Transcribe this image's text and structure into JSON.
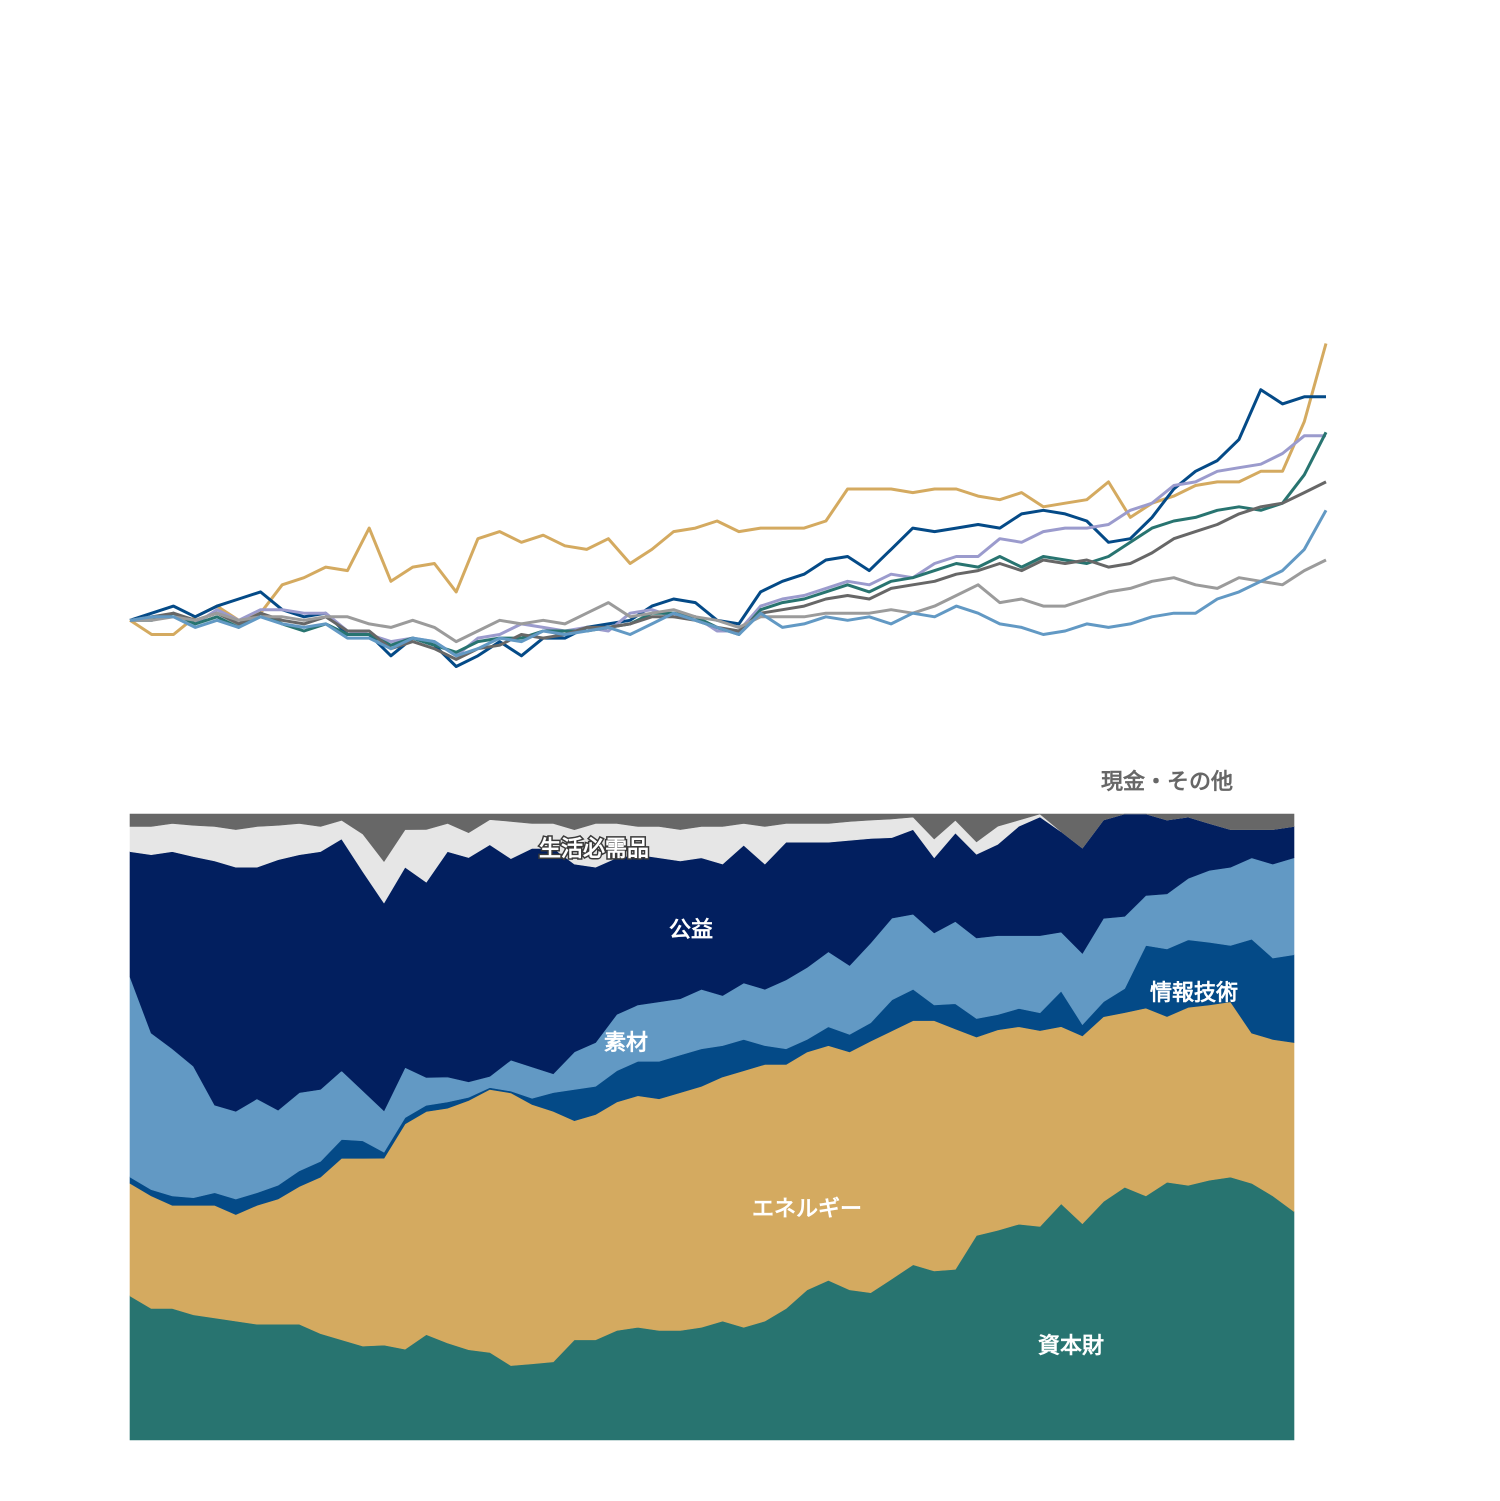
{
  "chart_data": [
    {
      "type": "line",
      "title": "",
      "xlabel": "",
      "ylabel": "",
      "grid": false,
      "legend": "none",
      "ylim": [
        0.55,
        2.1
      ],
      "x": [
        1,
        2,
        3,
        4,
        5,
        6,
        7,
        8,
        9,
        10,
        11,
        12,
        13,
        14,
        15,
        16,
        17,
        18,
        19,
        20,
        21,
        22,
        23,
        24,
        25,
        26,
        27,
        28,
        29,
        30,
        31,
        32,
        33,
        34,
        35,
        36,
        37,
        38,
        39,
        40,
        41,
        42,
        43,
        44,
        45,
        46,
        47,
        48,
        49,
        50,
        51,
        52,
        53,
        54,
        55,
        56
      ],
      "series": [
        {
          "color": "#d4aa60",
          "values": [
            1.0,
            0.96,
            0.96,
            1.01,
            1.04,
            1.0,
            1.02,
            1.1,
            1.12,
            1.15,
            1.14,
            1.26,
            1.11,
            1.15,
            1.16,
            1.08,
            1.23,
            1.25,
            1.22,
            1.24,
            1.21,
            1.2,
            1.23,
            1.16,
            1.2,
            1.25,
            1.26,
            1.28,
            1.25,
            1.26,
            1.26,
            1.26,
            1.28,
            1.37,
            1.37,
            1.37,
            1.36,
            1.37,
            1.37,
            1.35,
            1.34,
            1.36,
            1.32,
            1.33,
            1.34,
            1.39,
            1.29,
            1.33,
            1.35,
            1.38,
            1.39,
            1.39,
            1.42,
            1.42,
            1.56,
            1.78
          ]
        },
        {
          "color": "#044a87",
          "values": [
            1.0,
            1.02,
            1.04,
            1.01,
            1.04,
            1.06,
            1.08,
            1.03,
            1.01,
            1.02,
            0.96,
            0.96,
            0.9,
            0.95,
            0.93,
            0.87,
            0.9,
            0.94,
            0.9,
            0.95,
            0.95,
            0.98,
            0.99,
            1.0,
            1.04,
            1.06,
            1.05,
            1.0,
            0.99,
            1.08,
            1.11,
            1.13,
            1.17,
            1.18,
            1.14,
            1.2,
            1.26,
            1.25,
            1.26,
            1.27,
            1.26,
            1.3,
            1.31,
            1.3,
            1.28,
            1.22,
            1.23,
            1.29,
            1.37,
            1.42,
            1.45,
            1.51,
            1.65,
            1.61,
            1.63,
            1.63
          ]
        },
        {
          "color": "#9b9bcd",
          "values": [
            1.0,
            1.0,
            1.02,
            0.99,
            1.03,
            1.0,
            1.03,
            1.03,
            1.02,
            1.02,
            0.97,
            0.96,
            0.94,
            0.95,
            0.94,
            0.9,
            0.95,
            0.96,
            0.99,
            0.98,
            0.97,
            0.98,
            0.97,
            1.02,
            1.03,
            1.01,
            1.01,
            0.97,
            0.97,
            1.04,
            1.06,
            1.07,
            1.09,
            1.11,
            1.1,
            1.13,
            1.12,
            1.16,
            1.18,
            1.18,
            1.23,
            1.22,
            1.25,
            1.26,
            1.26,
            1.27,
            1.31,
            1.33,
            1.38,
            1.39,
            1.42,
            1.43,
            1.44,
            1.47,
            1.52,
            1.52
          ]
        },
        {
          "color": "#287470",
          "values": [
            1.0,
            1.0,
            1.02,
            0.99,
            1.01,
            0.98,
            1.02,
            0.99,
            0.97,
            0.99,
            0.96,
            0.96,
            0.93,
            0.95,
            0.93,
            0.91,
            0.94,
            0.95,
            0.95,
            0.97,
            0.97,
            0.97,
            0.98,
            0.99,
            1.02,
            1.02,
            1.01,
            0.98,
            0.96,
            1.03,
            1.05,
            1.06,
            1.08,
            1.1,
            1.08,
            1.11,
            1.12,
            1.14,
            1.16,
            1.15,
            1.18,
            1.15,
            1.18,
            1.17,
            1.16,
            1.18,
            1.22,
            1.26,
            1.28,
            1.29,
            1.31,
            1.32,
            1.31,
            1.33,
            1.41,
            1.53
          ]
        },
        {
          "color": "#676767",
          "values": [
            1.0,
            1.01,
            1.02,
            1.0,
            1.02,
            0.99,
            1.02,
            1.0,
            0.99,
            1.01,
            0.97,
            0.97,
            0.92,
            0.94,
            0.92,
            0.89,
            0.92,
            0.93,
            0.96,
            0.95,
            0.96,
            0.98,
            0.98,
            0.99,
            1.01,
            1.01,
            1.0,
            0.98,
            0.97,
            1.02,
            1.03,
            1.04,
            1.06,
            1.07,
            1.06,
            1.09,
            1.1,
            1.11,
            1.13,
            1.14,
            1.16,
            1.14,
            1.17,
            1.16,
            1.17,
            1.15,
            1.16,
            1.19,
            1.23,
            1.25,
            1.27,
            1.3,
            1.32,
            1.33,
            1.36,
            1.39
          ]
        },
        {
          "color": "#9b9b9b",
          "values": [
            1.0,
            1.0,
            1.01,
            1.0,
            1.02,
            1.0,
            1.01,
            1.01,
            1.0,
            1.01,
            1.01,
            0.99,
            0.98,
            1.0,
            0.98,
            0.94,
            0.97,
            1.0,
            0.99,
            1.0,
            0.99,
            1.02,
            1.05,
            1.01,
            1.02,
            1.03,
            1.01,
            1.0,
            0.98,
            1.01,
            1.01,
            1.01,
            1.02,
            1.02,
            1.02,
            1.03,
            1.02,
            1.04,
            1.07,
            1.1,
            1.05,
            1.06,
            1.04,
            1.04,
            1.06,
            1.08,
            1.09,
            1.11,
            1.12,
            1.1,
            1.09,
            1.12,
            1.11,
            1.1,
            1.14,
            1.17
          ]
        },
        {
          "color": "#6299c4",
          "values": [
            1.0,
            1.01,
            1.01,
            0.98,
            1.0,
            0.98,
            1.01,
            0.99,
            0.98,
            0.99,
            0.95,
            0.95,
            0.92,
            0.95,
            0.94,
            0.9,
            0.92,
            0.95,
            0.94,
            0.97,
            0.96,
            0.97,
            0.98,
            0.96,
            0.99,
            1.02,
            1.0,
            0.98,
            0.96,
            1.02,
            0.98,
            0.99,
            1.01,
            1.0,
            1.01,
            0.99,
            1.02,
            1.01,
            1.04,
            1.02,
            0.99,
            0.98,
            0.96,
            0.97,
            0.99,
            0.98,
            0.99,
            1.01,
            1.02,
            1.02,
            1.06,
            1.08,
            1.11,
            1.14,
            1.2,
            1.31
          ]
        }
      ]
    },
    {
      "type": "area",
      "title": "",
      "xlabel": "",
      "ylabel": "",
      "grid": false,
      "stacked": true,
      "normalized": true,
      "ylim": [
        0,
        1
      ],
      "x": [
        1,
        2,
        3,
        4,
        5,
        6,
        7,
        8,
        9,
        10,
        11,
        12,
        13,
        14,
        15,
        16,
        17,
        18,
        19,
        20,
        21,
        22,
        23,
        24,
        25,
        26,
        27,
        28,
        29,
        30,
        31,
        32,
        33,
        34,
        35,
        36,
        37,
        38,
        39,
        40,
        41,
        42,
        43,
        44,
        45,
        46,
        47,
        48,
        49,
        50,
        51,
        52,
        53,
        54,
        55,
        56
      ],
      "series": [
        {
          "name": "資本財",
          "color": "#287470",
          "values": [
            0.23,
            0.21,
            0.21,
            0.2,
            0.195,
            0.19,
            0.185,
            0.185,
            0.185,
            0.17,
            0.16,
            0.15,
            0.16,
            0.145,
            0.17,
            0.155,
            0.145,
            0.14,
            0.12,
            0.122,
            0.125,
            0.16,
            0.16,
            0.175,
            0.18,
            0.175,
            0.175,
            0.18,
            0.19,
            0.18,
            0.19,
            0.21,
            0.24,
            0.255,
            0.24,
            0.24,
            0.26,
            0.28,
            0.27,
            0.27,
            0.33,
            0.345,
            0.355,
            0.36,
            0.4,
            0.38,
            0.4,
            0.42,
            0.39,
            0.42,
            0.415,
            0.415,
            0.42,
            0.41,
            0.39,
            0.365
          ]
        },
        {
          "name": "エネルギー",
          "color": "#d4aa60",
          "values": [
            0.18,
            0.18,
            0.165,
            0.175,
            0.18,
            0.17,
            0.19,
            0.2,
            0.22,
            0.25,
            0.29,
            0.3,
            0.315,
            0.36,
            0.36,
            0.375,
            0.4,
            0.42,
            0.44,
            0.415,
            0.4,
            0.35,
            0.36,
            0.365,
            0.37,
            0.37,
            0.38,
            0.385,
            0.39,
            0.41,
            0.41,
            0.39,
            0.38,
            0.375,
            0.38,
            0.41,
            0.4,
            0.39,
            0.4,
            0.38,
            0.32,
            0.33,
            0.325,
            0.33,
            0.3,
            0.33,
            0.31,
            0.29,
            0.3,
            0.27,
            0.29,
            0.28,
            0.28,
            0.24,
            0.25,
            0.27
          ]
        },
        {
          "name": "情報技術",
          "color": "#044a87",
          "values": [
            0.01,
            0.01,
            0.015,
            0.012,
            0.02,
            0.025,
            0.02,
            0.022,
            0.025,
            0.025,
            0.03,
            0.028,
            0.01,
            0.01,
            0.01,
            0.01,
            0.005,
            0.003,
            0.003,
            0.01,
            0.03,
            0.05,
            0.045,
            0.05,
            0.055,
            0.06,
            0.06,
            0.06,
            0.05,
            0.05,
            0.03,
            0.025,
            0.02,
            0.03,
            0.028,
            0.03,
            0.05,
            0.05,
            0.025,
            0.04,
            0.03,
            0.025,
            0.03,
            0.03,
            0.06,
            0.02,
            0.025,
            0.04,
            0.1,
            0.11,
            0.11,
            0.1,
            0.09,
            0.15,
            0.13,
            0.14
          ]
        },
        {
          "name": "素材",
          "color": "#6299c4",
          "values": [
            0.32,
            0.25,
            0.235,
            0.21,
            0.14,
            0.14,
            0.15,
            0.12,
            0.125,
            0.115,
            0.11,
            0.08,
            0.07,
            0.08,
            0.045,
            0.04,
            0.025,
            0.018,
            0.05,
            0.05,
            0.03,
            0.06,
            0.07,
            0.09,
            0.09,
            0.095,
            0.09,
            0.095,
            0.08,
            0.09,
            0.09,
            0.11,
            0.115,
            0.12,
            0.11,
            0.13,
            0.132,
            0.12,
            0.115,
            0.13,
            0.13,
            0.13,
            0.12,
            0.13,
            0.1,
            0.125,
            0.14,
            0.12,
            0.08,
            0.09,
            0.1,
            0.115,
            0.125,
            0.13,
            0.15,
            0.155
          ]
        },
        {
          "name": "公益",
          "color": "#021f5f",
          "values": [
            0.2,
            0.285,
            0.315,
            0.335,
            0.39,
            0.39,
            0.37,
            0.4,
            0.38,
            0.38,
            0.37,
            0.35,
            0.35,
            0.32,
            0.315,
            0.36,
            0.36,
            0.37,
            0.325,
            0.35,
            0.36,
            0.3,
            0.28,
            0.25,
            0.24,
            0.23,
            0.22,
            0.21,
            0.21,
            0.22,
            0.2,
            0.22,
            0.2,
            0.175,
            0.2,
            0.17,
            0.13,
            0.135,
            0.12,
            0.14,
            0.135,
            0.15,
            0.18,
            0.2,
            0.17,
            0.185,
            0.165,
            0.17,
            0.13,
            0.12,
            0.1,
            0.075,
            0.06,
            0.045,
            0.055,
            0.05
          ]
        },
        {
          "name": "生活必需品",
          "color": "#e6e6e6",
          "values": [
            0.04,
            0.045,
            0.045,
            0.05,
            0.055,
            0.06,
            0.065,
            0.055,
            0.05,
            0.04,
            0.03,
            0.06,
            0.07,
            0.06,
            0.085,
            0.045,
            0.04,
            0.04,
            0.06,
            0.04,
            0.04,
            0.055,
            0.07,
            0.055,
            0.045,
            0.05,
            0.05,
            0.05,
            0.06,
            0.035,
            0.06,
            0.03,
            0.03,
            0.03,
            0.03,
            0.03,
            0.03,
            0.02,
            0.03,
            0.02,
            0.02,
            0.03,
            0.01,
            0.005,
            0.0,
            0.0,
            0.0,
            0.0,
            0.0,
            0.0,
            0.0,
            0.0,
            0.0,
            0.0,
            0.0,
            0.0
          ]
        },
        {
          "name": "現金・その他",
          "color": "#676767",
          "values": [
            0.02,
            0.02,
            0.015,
            0.018,
            0.02,
            0.025,
            0.02,
            0.018,
            0.015,
            0.02,
            0.01,
            0.032,
            0.08,
            0.025,
            0.025,
            0.015,
            0.03,
            0.009,
            0.012,
            0.015,
            0.015,
            0.025,
            0.015,
            0.015,
            0.02,
            0.02,
            0.025,
            0.02,
            0.02,
            0.015,
            0.02,
            0.015,
            0.015,
            0.015,
            0.012,
            0.01,
            0.008,
            0.005,
            0.04,
            0.01,
            0.045,
            0.02,
            0.01,
            0.0,
            0.03,
            0.06,
            0.01,
            0.0,
            0.0,
            0.01,
            0.005,
            0.015,
            0.025,
            0.025,
            0.025,
            0.02
          ]
        }
      ]
    }
  ]
}
